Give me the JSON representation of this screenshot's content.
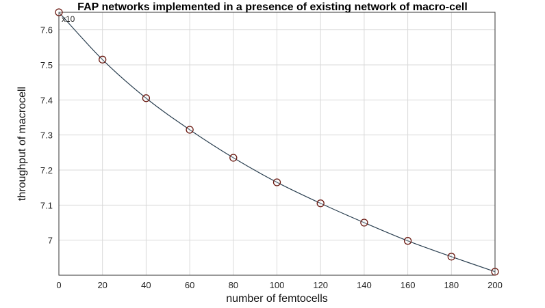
{
  "chart_data": {
    "type": "line",
    "title": "FAP networks implemented in a presence of existing network of macro-cell",
    "xlabel": "number of femtocells",
    "ylabel": "throughput of macrocell",
    "y_exponent_label": "x10",
    "xlim": [
      0,
      200
    ],
    "ylim": [
      6.9,
      7.65
    ],
    "x_ticks": [
      "0",
      "20",
      "40",
      "60",
      "80",
      "100",
      "120",
      "140",
      "160",
      "180",
      "200"
    ],
    "y_ticks": [
      "7",
      "7.1",
      "7.2",
      "7.3",
      "7.4",
      "7.5",
      "7.6"
    ],
    "grid": true,
    "series": [
      {
        "x": [
          0,
          20,
          40,
          60,
          80,
          100,
          120,
          140,
          160,
          180,
          200
        ],
        "y": [
          7.65,
          7.515,
          7.405,
          7.315,
          7.235,
          7.165,
          7.105,
          7.05,
          6.998,
          6.953,
          6.91
        ],
        "color": "#2a3f50",
        "marker": "circle",
        "marker_color": "#6b1a12"
      }
    ]
  }
}
